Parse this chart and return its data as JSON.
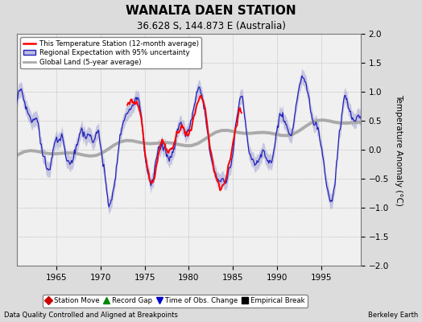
{
  "title": "WANALTA DAEN STATION",
  "subtitle": "36.628 S, 144.873 E (Australia)",
  "ylabel": "Temperature Anomaly (°C)",
  "xlabel_note": "Data Quality Controlled and Aligned at Breakpoints",
  "credit": "Berkeley Earth",
  "ylim": [
    -2,
    2
  ],
  "xlim": [
    1960.5,
    1999.5
  ],
  "xticks": [
    1965,
    1970,
    1975,
    1980,
    1985,
    1990,
    1995
  ],
  "yticks": [
    -2,
    -1.5,
    -1,
    -0.5,
    0,
    0.5,
    1,
    1.5,
    2
  ],
  "station_color": "#FF0000",
  "regional_color": "#2222BB",
  "regional_fill_color": "#BBBBDD",
  "global_color": "#AAAAAA",
  "bg_color": "#DCDCDC",
  "plot_bg_color": "#F0F0F0",
  "legend_items": [
    "This Temperature Station (12-month average)",
    "Regional Expectation with 95% uncertainty",
    "Global Land (5-year average)"
  ],
  "marker_legend": [
    {
      "label": "Station Move",
      "color": "#CC0000",
      "marker": "D"
    },
    {
      "label": "Record Gap",
      "color": "#008800",
      "marker": "^"
    },
    {
      "label": "Time of Obs. Change",
      "color": "#0000CC",
      "marker": "v"
    },
    {
      "label": "Empirical Break",
      "color": "#000000",
      "marker": "s"
    }
  ],
  "seed": 17
}
